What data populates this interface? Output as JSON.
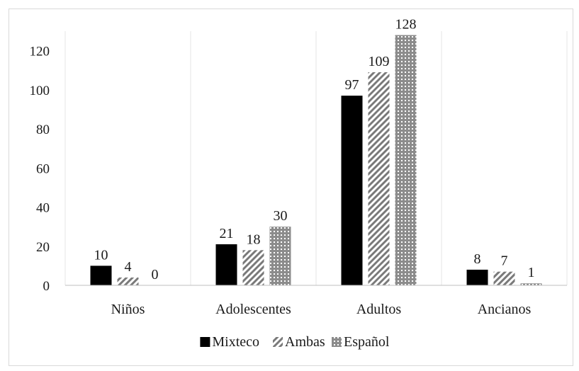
{
  "chart_data": {
    "type": "bar",
    "categories": [
      "Niños",
      "Adolescentes",
      "Adultos",
      "Ancianos"
    ],
    "series": [
      {
        "name": "Mixteco",
        "values": [
          10,
          21,
          97,
          8
        ],
        "pattern": "solid",
        "color": "#000000"
      },
      {
        "name": "Ambas",
        "values": [
          4,
          18,
          109,
          7
        ],
        "pattern": "diagonal-hatch",
        "color": "#7f7f7f"
      },
      {
        "name": "Español",
        "values": [
          0,
          30,
          128,
          1
        ],
        "pattern": "dots",
        "color": "#7f7f7f"
      }
    ],
    "yticks": [
      "0",
      "20",
      "40",
      "60",
      "80",
      "100",
      "120"
    ],
    "ylim": [
      0,
      130
    ],
    "grid": "vertical-category-lines",
    "legend_position": "bottom-center",
    "title": "",
    "xlabel": "",
    "ylabel": ""
  }
}
